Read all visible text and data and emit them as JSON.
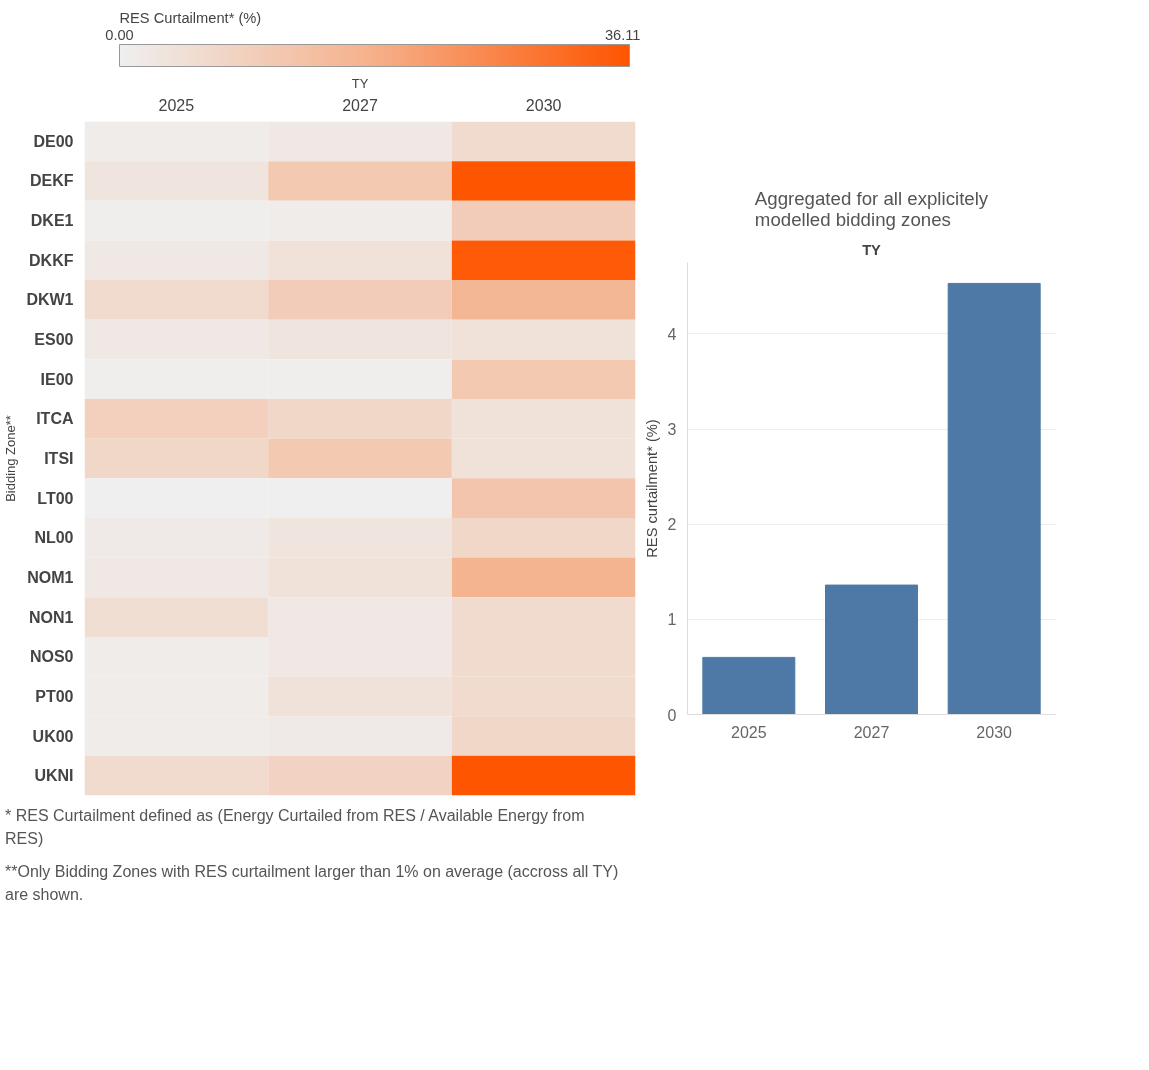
{
  "chart_data": [
    {
      "type": "heatmap",
      "clabel": "RES Curtailment* (%)",
      "xlabel": "TY",
      "ylabel": "Bidding Zone**",
      "categories": [
        "2025",
        "2027",
        "2030"
      ],
      "y_categories": [
        "DE00",
        "DEKF",
        "DKE1",
        "DKKF",
        "DKW1",
        "ES00",
        "IE00",
        "ITCA",
        "ITSI",
        "LT00",
        "NL00",
        "NOM1",
        "NON1",
        "NOS0",
        "PT00",
        "UK00",
        "UKNI"
      ],
      "cells": [
        [
          1,
          2,
          6
        ],
        [
          3,
          11,
          36
        ],
        [
          0.5,
          1,
          10
        ],
        [
          2,
          4,
          35
        ],
        [
          6,
          10,
          16
        ],
        [
          2,
          3,
          4
        ],
        [
          0.5,
          0.5,
          11
        ],
        [
          9,
          7,
          4
        ],
        [
          7,
          11,
          4
        ],
        [
          0,
          0,
          12
        ],
        [
          1.5,
          3,
          7
        ],
        [
          2,
          4,
          17
        ],
        [
          5,
          2,
          6
        ],
        [
          1,
          2,
          6
        ],
        [
          1,
          4,
          6
        ],
        [
          1,
          1.5,
          7
        ],
        [
          6,
          8,
          36
        ]
      ],
      "clim": [
        0,
        36.11
      ],
      "cticks": [
        {
          "value": 0,
          "label": "0.00"
        },
        {
          "value": 36.11,
          "label": "36.11"
        }
      ],
      "annotations": [
        "* RES Curtailment defined as (Energy Curtailed from RES / Available Energy from RES)",
        "**Only Bidding Zones with RES curtailment larger than 1% on average (accross all TY) are shown."
      ]
    },
    {
      "type": "bar",
      "title": "Aggregated for all explicitely modelled bidding zones",
      "xlabel": "TY",
      "ylabel": "RES curtailment* (%)",
      "categories": [
        "2025",
        "2027",
        "2030"
      ],
      "values": [
        0.6,
        1.36,
        4.53
      ],
      "color": "#4e79a7",
      "ylim": [
        0,
        4.75
      ],
      "yticks": [
        0,
        1,
        2,
        3,
        4
      ],
      "grid": "y"
    }
  ]
}
